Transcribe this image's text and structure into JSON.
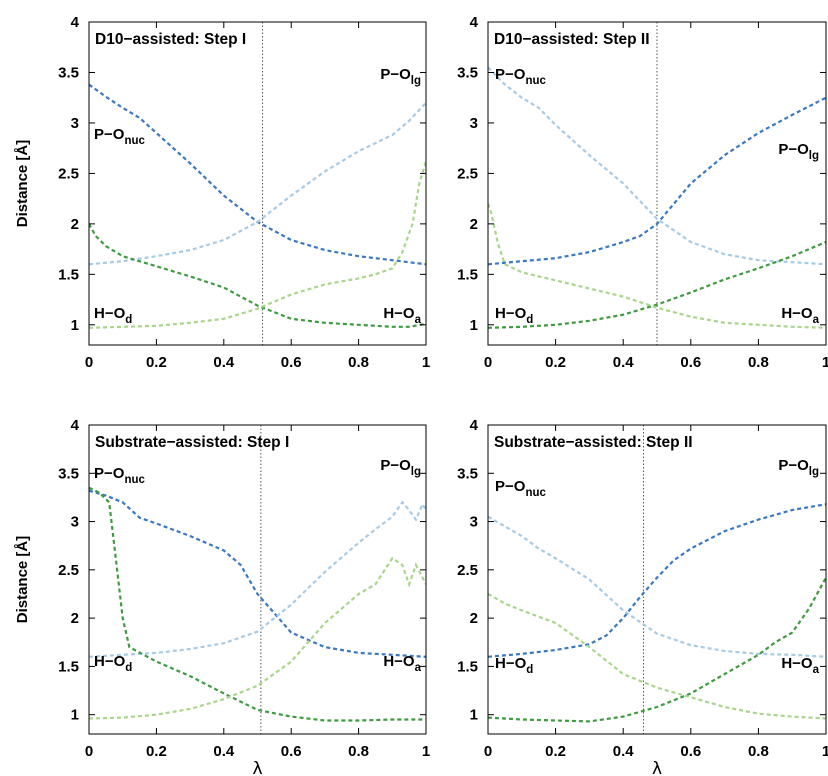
{
  "colors": {
    "dark_blue": "#3b78c2",
    "light_blue": "#a7cbe6",
    "dark_green": "#3f9b3f",
    "light_green": "#a9d68b"
  },
  "chart_data": [
    {
      "type": "line",
      "title": "D10−assisted: Step I",
      "xlabel": "",
      "ylabel": "Distance [Å]",
      "xlim": [
        0,
        1
      ],
      "ylim": [
        0.8,
        4
      ],
      "x_ticks": [
        "0",
        "0.2",
        "0.4",
        "0.6",
        "0.8",
        "1"
      ],
      "y_ticks": [
        "1",
        "1.5",
        "2",
        "2.5",
        "3",
        "3.5",
        "4"
      ],
      "vline": 0.515,
      "annotations": [
        {
          "main": "P−O",
          "sub": "nuc"
        },
        {
          "main": "P−O",
          "sub": "lg"
        },
        {
          "main": "H−O",
          "sub": "d"
        },
        {
          "main": "H−O",
          "sub": "a"
        }
      ],
      "series": [
        {
          "color": "dark_blue",
          "x": [
            0,
            0.05,
            0.1,
            0.15,
            0.2,
            0.3,
            0.4,
            0.5,
            0.6,
            0.7,
            0.8,
            0.9,
            1.0
          ],
          "y": [
            3.38,
            3.26,
            3.15,
            3.05,
            2.9,
            2.6,
            2.28,
            2.02,
            1.84,
            1.74,
            1.68,
            1.64,
            1.6
          ]
        },
        {
          "color": "light_blue",
          "x": [
            0,
            0.1,
            0.2,
            0.3,
            0.4,
            0.5,
            0.6,
            0.7,
            0.8,
            0.9,
            0.95,
            1.0
          ],
          "y": [
            1.6,
            1.63,
            1.68,
            1.74,
            1.84,
            2.02,
            2.28,
            2.52,
            2.72,
            2.88,
            3.02,
            3.2
          ]
        },
        {
          "color": "dark_green",
          "x": [
            0,
            0.02,
            0.05,
            0.1,
            0.2,
            0.3,
            0.4,
            0.5,
            0.6,
            0.7,
            0.8,
            0.9,
            0.95,
            1.0
          ],
          "y": [
            2.0,
            1.88,
            1.78,
            1.68,
            1.58,
            1.48,
            1.37,
            1.19,
            1.06,
            1.02,
            1.0,
            0.98,
            0.98,
            1.01
          ]
        },
        {
          "color": "light_green",
          "x": [
            0,
            0.1,
            0.2,
            0.3,
            0.4,
            0.5,
            0.6,
            0.7,
            0.8,
            0.85,
            0.9,
            0.93,
            0.96,
            0.98,
            1.0
          ],
          "y": [
            0.97,
            0.98,
            0.99,
            1.02,
            1.06,
            1.16,
            1.3,
            1.4,
            1.46,
            1.5,
            1.56,
            1.72,
            2.0,
            2.4,
            2.62
          ]
        }
      ]
    },
    {
      "type": "line",
      "title": "D10−assisted: Step II",
      "xlabel": "",
      "ylabel": "",
      "xlim": [
        0,
        1
      ],
      "ylim": [
        0.8,
        4
      ],
      "x_ticks": [
        "0",
        "0.2",
        "0.4",
        "0.6",
        "0.8",
        "1"
      ],
      "y_ticks": [
        "1",
        "1.5",
        "2",
        "2.5",
        "3",
        "3.5",
        "4"
      ],
      "vline": 0.5,
      "annotations": [
        {
          "main": "P−O",
          "sub": "nuc"
        },
        {
          "main": "P−O",
          "sub": "lg"
        },
        {
          "main": "H−O",
          "sub": "d"
        },
        {
          "main": "H−O",
          "sub": "a"
        }
      ],
      "series": [
        {
          "color": "dark_blue",
          "x": [
            0,
            0.1,
            0.2,
            0.3,
            0.4,
            0.45,
            0.5,
            0.55,
            0.6,
            0.7,
            0.8,
            0.9,
            1.0
          ],
          "y": [
            1.6,
            1.63,
            1.66,
            1.72,
            1.82,
            1.88,
            2.0,
            2.2,
            2.4,
            2.68,
            2.9,
            3.08,
            3.25
          ]
        },
        {
          "color": "light_blue",
          "x": [
            0,
            0.05,
            0.1,
            0.15,
            0.2,
            0.3,
            0.4,
            0.5,
            0.6,
            0.7,
            0.8,
            0.9,
            1.0
          ],
          "y": [
            3.55,
            3.38,
            3.25,
            3.15,
            2.98,
            2.68,
            2.4,
            2.05,
            1.82,
            1.7,
            1.64,
            1.62,
            1.6
          ]
        },
        {
          "color": "dark_green",
          "x": [
            0,
            0.1,
            0.2,
            0.3,
            0.4,
            0.5,
            0.6,
            0.7,
            0.8,
            0.9,
            1.0
          ],
          "y": [
            0.97,
            0.98,
            1.0,
            1.04,
            1.1,
            1.2,
            1.32,
            1.45,
            1.56,
            1.68,
            1.82
          ]
        },
        {
          "color": "light_green",
          "x": [
            0,
            0.01,
            0.03,
            0.05,
            0.1,
            0.2,
            0.3,
            0.4,
            0.5,
            0.6,
            0.7,
            0.8,
            0.9,
            1.0
          ],
          "y": [
            2.2,
            2.1,
            1.8,
            1.6,
            1.52,
            1.44,
            1.36,
            1.28,
            1.17,
            1.08,
            1.02,
            1.0,
            0.98,
            0.97
          ]
        }
      ]
    },
    {
      "type": "line",
      "title": "Substrate−assisted: Step I",
      "xlabel": "λ",
      "ylabel": "Distance [Å]",
      "xlim": [
        0,
        1
      ],
      "ylim": [
        0.8,
        4
      ],
      "x_ticks": [
        "0",
        "0.2",
        "0.4",
        "0.6",
        "0.8",
        "1"
      ],
      "y_ticks": [
        "1",
        "1.5",
        "2",
        "2.5",
        "3",
        "3.5",
        "4"
      ],
      "vline": 0.51,
      "annotations": [
        {
          "main": "P−O",
          "sub": "nuc"
        },
        {
          "main": "P−O",
          "sub": "lg"
        },
        {
          "main": "H−O",
          "sub": "d"
        },
        {
          "main": "H−O",
          "sub": "a"
        }
      ],
      "series": [
        {
          "color": "dark_blue",
          "x": [
            0,
            0.05,
            0.1,
            0.15,
            0.2,
            0.3,
            0.4,
            0.45,
            0.5,
            0.55,
            0.6,
            0.7,
            0.8,
            0.9,
            1.0
          ],
          "y": [
            3.32,
            3.27,
            3.2,
            3.04,
            2.98,
            2.85,
            2.7,
            2.55,
            2.25,
            2.05,
            1.85,
            1.7,
            1.64,
            1.62,
            1.6
          ]
        },
        {
          "color": "light_blue",
          "x": [
            0,
            0.1,
            0.2,
            0.3,
            0.4,
            0.5,
            0.6,
            0.7,
            0.8,
            0.85,
            0.9,
            0.93,
            0.95,
            0.97,
            0.99,
            1.0
          ],
          "y": [
            1.6,
            1.62,
            1.64,
            1.68,
            1.74,
            1.86,
            2.14,
            2.48,
            2.78,
            2.92,
            3.05,
            3.2,
            3.12,
            3.02,
            3.18,
            3.12
          ]
        },
        {
          "color": "dark_green",
          "x": [
            0,
            0.03,
            0.06,
            0.08,
            0.1,
            0.12,
            0.2,
            0.3,
            0.4,
            0.5,
            0.6,
            0.7,
            0.8,
            0.9,
            1.0
          ],
          "y": [
            3.35,
            3.3,
            3.2,
            2.6,
            2.0,
            1.7,
            1.55,
            1.4,
            1.22,
            1.05,
            0.98,
            0.94,
            0.94,
            0.95,
            0.95
          ]
        },
        {
          "color": "light_green",
          "x": [
            0,
            0.1,
            0.2,
            0.3,
            0.4,
            0.5,
            0.6,
            0.7,
            0.8,
            0.85,
            0.9,
            0.93,
            0.95,
            0.97,
            0.99,
            1.0
          ],
          "y": [
            0.96,
            0.97,
            1.0,
            1.06,
            1.16,
            1.3,
            1.55,
            1.95,
            2.25,
            2.35,
            2.62,
            2.55,
            2.35,
            2.55,
            2.42,
            2.35
          ]
        }
      ]
    },
    {
      "type": "line",
      "title": "Substrate−assisted: Step II",
      "xlabel": "λ",
      "ylabel": "",
      "xlim": [
        0,
        1
      ],
      "ylim": [
        0.8,
        4
      ],
      "x_ticks": [
        "0",
        "0.2",
        "0.4",
        "0.6",
        "0.8",
        "1"
      ],
      "y_ticks": [
        "1",
        "1.5",
        "2",
        "2.5",
        "3",
        "3.5",
        "4"
      ],
      "vline": 0.46,
      "annotations": [
        {
          "main": "P−O",
          "sub": "nuc"
        },
        {
          "main": "P−O",
          "sub": "lg"
        },
        {
          "main": "H−O",
          "sub": "d"
        },
        {
          "main": "H−O",
          "sub": "a"
        }
      ],
      "series": [
        {
          "color": "dark_blue",
          "x": [
            0,
            0.1,
            0.2,
            0.3,
            0.35,
            0.4,
            0.45,
            0.5,
            0.55,
            0.6,
            0.7,
            0.8,
            0.9,
            1.0
          ],
          "y": [
            1.6,
            1.63,
            1.67,
            1.73,
            1.82,
            2.0,
            2.22,
            2.42,
            2.6,
            2.72,
            2.9,
            3.02,
            3.12,
            3.18
          ]
        },
        {
          "color": "light_blue",
          "x": [
            0,
            0.05,
            0.1,
            0.15,
            0.2,
            0.3,
            0.4,
            0.5,
            0.6,
            0.7,
            0.8,
            0.9,
            1.0
          ],
          "y": [
            3.05,
            2.95,
            2.85,
            2.72,
            2.62,
            2.4,
            2.08,
            1.84,
            1.72,
            1.66,
            1.63,
            1.62,
            1.6
          ]
        },
        {
          "color": "dark_green",
          "x": [
            0,
            0.1,
            0.2,
            0.3,
            0.4,
            0.5,
            0.6,
            0.7,
            0.8,
            0.85,
            0.9,
            0.95,
            1.0
          ],
          "y": [
            0.97,
            0.95,
            0.94,
            0.93,
            0.98,
            1.08,
            1.22,
            1.42,
            1.62,
            1.75,
            1.85,
            2.1,
            2.42
          ]
        },
        {
          "color": "light_green",
          "x": [
            0,
            0.05,
            0.1,
            0.2,
            0.3,
            0.4,
            0.5,
            0.6,
            0.7,
            0.8,
            0.9,
            1.0
          ],
          "y": [
            2.25,
            2.15,
            2.08,
            1.95,
            1.7,
            1.42,
            1.28,
            1.18,
            1.08,
            1.01,
            0.98,
            0.96
          ]
        }
      ]
    }
  ]
}
